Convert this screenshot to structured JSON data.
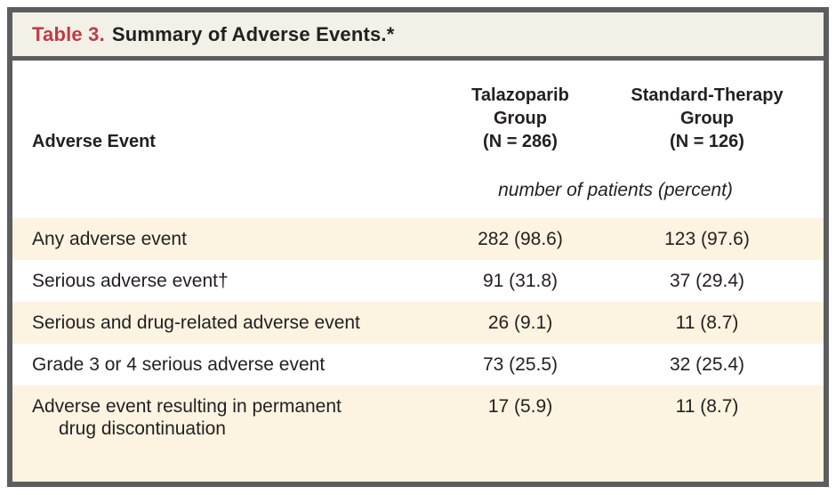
{
  "title": {
    "label": "Table 3.",
    "text": "Summary of Adverse Events.*"
  },
  "header": {
    "event_column": "Adverse Event",
    "groups": [
      {
        "lines": [
          "Talazoparib",
          "Group",
          "(N = 286)"
        ]
      },
      {
        "lines": [
          "Standard-Therapy",
          "Group",
          "(N = 126)"
        ]
      }
    ],
    "units": "number of patients (percent)"
  },
  "rows": [
    {
      "label": "Any adverse event",
      "talazoparib": "282 (98.6)",
      "standard": "123 (97.6)"
    },
    {
      "label": "Serious adverse event†",
      "talazoparib": "91 (31.8)",
      "standard": "37 (29.4)"
    },
    {
      "label": "Serious and drug-related adverse event",
      "talazoparib": "26 (9.1)",
      "standard": "11 (8.7)"
    },
    {
      "label": "Grade 3 or 4 serious adverse event",
      "talazoparib": "73 (25.5)",
      "standard": "32 (25.4)"
    },
    {
      "label": "Adverse event resulting in permanent",
      "label2": "drug discontinuation",
      "talazoparib": "17 (5.9)",
      "standard": "11 (8.7)"
    }
  ],
  "colors": {
    "accent_red": "#bf3a46",
    "border_gray": "#5c5d5f",
    "titlebar_bg": "#f3f0e8",
    "stripe_bg": "#fcf4e1",
    "text": "#231f20"
  }
}
